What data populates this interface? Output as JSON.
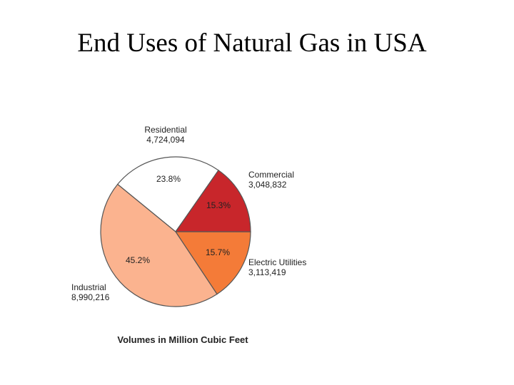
{
  "chart_data": {
    "type": "pie",
    "title": "End Uses of Natural Gas in USA",
    "caption": "Volumes in Million Cubic Feet",
    "categories": [
      "Residential",
      "Commercial",
      "Electric Utilities",
      "Industrial"
    ],
    "values": [
      4724094,
      3048832,
      3113419,
      8990216
    ],
    "value_labels": [
      "4,724,094",
      "3,048,832",
      "3,113,419",
      "8,990,216"
    ],
    "percents": [
      23.8,
      15.3,
      15.7,
      45.2
    ],
    "percent_labels": [
      "23.8%",
      "15.3%",
      "15.7%",
      "45.2%"
    ],
    "colors": [
      "#ffffff",
      "#c8262b",
      "#f47b38",
      "#fbb38f"
    ]
  }
}
